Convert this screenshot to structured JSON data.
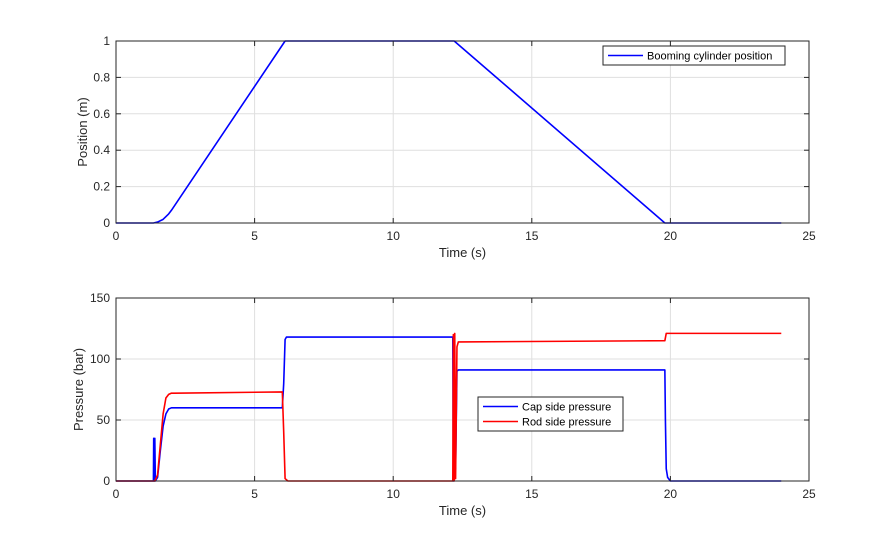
{
  "chart_data": [
    {
      "type": "line",
      "xlabel": "Time (s)",
      "ylabel": "Position (m)",
      "xlim": [
        0,
        25
      ],
      "ylim": [
        0,
        1
      ],
      "xticks": [
        0,
        5,
        10,
        15,
        20,
        25
      ],
      "yticks": [
        0,
        0.2,
        0.4,
        0.6,
        0.8,
        1
      ],
      "xtick_labels": [
        "0",
        "5",
        "10",
        "15",
        "20",
        "25"
      ],
      "ytick_labels": [
        "0",
        "0.2",
        "0.4",
        "0.6",
        "0.8",
        "1"
      ],
      "grid": true,
      "legend_position": "top-right",
      "series": [
        {
          "name": "Booming cylinder position",
          "color": "#0000ff",
          "x": [
            0,
            1.35,
            1.5,
            1.7,
            1.9,
            2.0,
            6.1,
            12.2,
            19.8,
            24
          ],
          "y": [
            0,
            0,
            0.005,
            0.02,
            0.05,
            0.07,
            1,
            1,
            0,
            0
          ]
        }
      ]
    },
    {
      "type": "line",
      "xlabel": "Time (s)",
      "ylabel": "Pressure (bar)",
      "xlim": [
        0,
        25
      ],
      "ylim": [
        0,
        150
      ],
      "xticks": [
        0,
        5,
        10,
        15,
        20,
        25
      ],
      "yticks": [
        0,
        50,
        100,
        150
      ],
      "xtick_labels": [
        "0",
        "5",
        "10",
        "15",
        "20",
        "25"
      ],
      "ytick_labels": [
        "0",
        "50",
        "100",
        "150"
      ],
      "grid": true,
      "legend_position": "center-right",
      "series": [
        {
          "name": "Cap side pressure",
          "color": "#0000ff",
          "x": [
            0,
            1.35,
            1.36,
            1.38,
            1.4,
            1.42,
            1.5,
            1.6,
            1.7,
            1.8,
            1.9,
            2.0,
            2.2,
            6.0,
            6.05,
            6.1,
            6.15,
            6.2,
            12.15,
            12.17,
            12.2,
            12.25,
            12.3,
            12.35,
            12.4,
            19.8,
            19.82,
            19.85,
            19.9,
            20.0,
            24
          ],
          "y": [
            0,
            0,
            35,
            0,
            35,
            0,
            3,
            25,
            45,
            55,
            59,
            60,
            60,
            60,
            80,
            116,
            118,
            118,
            118,
            0,
            118,
            10,
            90,
            91,
            91,
            91,
            50,
            10,
            3,
            0,
            0
          ]
        },
        {
          "name": "Rod side pressure",
          "color": "#ff0000",
          "x": [
            0,
            1.4,
            1.5,
            1.6,
            1.7,
            1.8,
            1.9,
            2.0,
            2.1,
            6.0,
            6.05,
            6.1,
            6.2,
            12.15,
            12.17,
            12.2,
            12.22,
            12.25,
            12.3,
            12.35,
            12.4,
            19.8,
            19.85,
            24
          ],
          "y": [
            0,
            0,
            5,
            30,
            55,
            68,
            71,
            72,
            72,
            73,
            40,
            2,
            0,
            0,
            120,
            0,
            121,
            2,
            110,
            114,
            114,
            115,
            121,
            121
          ]
        }
      ]
    }
  ]
}
